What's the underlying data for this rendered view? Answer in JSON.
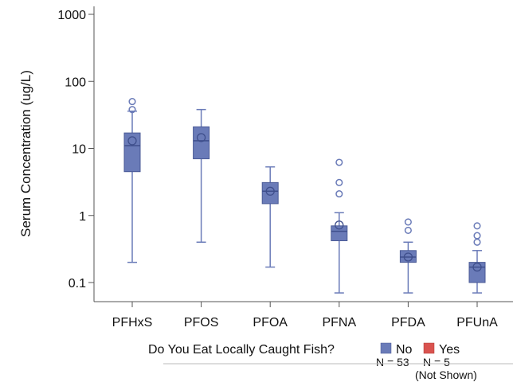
{
  "chart_data": {
    "type": "box",
    "ylabel": "Serum Concentration (ug/L)",
    "y_scale": "log",
    "ylim": [
      0.05,
      1000
    ],
    "yticks": [
      {
        "value": 0.1,
        "label": "0.1"
      },
      {
        "value": 1,
        "label": "1"
      },
      {
        "value": 10,
        "label": "10"
      },
      {
        "value": 100,
        "label": "100"
      },
      {
        "value": 1000,
        "label": "1000"
      }
    ],
    "grid": false,
    "categories": [
      "PFHxS",
      "PFOS",
      "PFOA",
      "PFNA",
      "PFDA",
      "PFUnA"
    ],
    "series": [
      {
        "name": "No",
        "color": "#6a7bb8",
        "boxes": [
          {
            "category": "PFHxS",
            "min": 0.2,
            "q1": 4.5,
            "median": 11,
            "q3": 17,
            "max": 36,
            "mean": 13,
            "outliers": [
              38,
              50
            ]
          },
          {
            "category": "PFOS",
            "min": 0.4,
            "q1": 7,
            "median": 13,
            "q3": 21,
            "max": 38,
            "mean": 14.5,
            "outliers": []
          },
          {
            "category": "PFOA",
            "min": 0.17,
            "q1": 1.5,
            "median": 2.3,
            "q3": 3.1,
            "max": 5.3,
            "mean": 2.3,
            "outliers": []
          },
          {
            "category": "PFNA",
            "min": 0.07,
            "q1": 0.42,
            "median": 0.58,
            "q3": 0.7,
            "max": 1.1,
            "mean": 0.72,
            "outliers": [
              2.1,
              3.1,
              6.2
            ]
          },
          {
            "category": "PFDA",
            "min": 0.07,
            "q1": 0.2,
            "median": 0.24,
            "q3": 0.3,
            "max": 0.4,
            "mean": 0.24,
            "outliers": [
              0.6,
              0.8
            ]
          },
          {
            "category": "PFUnA",
            "min": 0.07,
            "q1": 0.1,
            "median": 0.17,
            "q3": 0.2,
            "max": 0.3,
            "mean": 0.17,
            "outliers": [
              0.4,
              0.5,
              0.7
            ]
          }
        ]
      }
    ],
    "legend": {
      "placement": "bottom",
      "title": "Do You Eat Locally Caught Fish?",
      "items": [
        {
          "label": "No",
          "sub": "N = 53",
          "note": "",
          "color": "#6a7bb8"
        },
        {
          "label": "Yes",
          "sub": "N = 5",
          "note": "(Not Shown)",
          "color": "#d9534f"
        }
      ]
    }
  }
}
